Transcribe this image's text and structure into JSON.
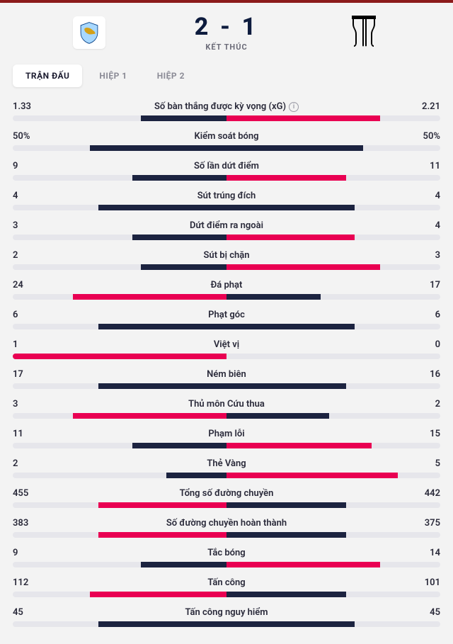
{
  "colors": {
    "home_bar": "#e90052",
    "away_bar": "#1c2340",
    "track": "#e6e6eb",
    "bg": "#f3f3f3",
    "top_border": "#8b1a1a"
  },
  "header": {
    "score": "2 - 1",
    "status": "KẾT THÚC",
    "home_team": "Lazio",
    "away_team": "Juventus"
  },
  "tabs": [
    {
      "label": "TRẬN ĐẤU",
      "active": true
    },
    {
      "label": "HIỆP 1",
      "active": false
    },
    {
      "label": "HIỆP 2",
      "active": false
    }
  ],
  "stats": [
    {
      "label": "Số bàn thắng được kỳ vọng (xG)",
      "home": "1.33",
      "away": "2.21",
      "home_pct": 20,
      "away_pct": 36,
      "info": true,
      "home_dark": true,
      "away_pink": true
    },
    {
      "label": "Kiểm soát bóng",
      "home": "50%",
      "away": "50%",
      "home_pct": 32,
      "away_pct": 32,
      "home_dark": true,
      "away_pink": false
    },
    {
      "label": "Số lần dứt điểm",
      "home": "9",
      "away": "11",
      "home_pct": 22,
      "away_pct": 28,
      "home_dark": true,
      "away_pink": true
    },
    {
      "label": "Sút trúng đích",
      "home": "4",
      "away": "4",
      "home_pct": 30,
      "away_pct": 30,
      "home_dark": true,
      "away_pink": false
    },
    {
      "label": "Dứt điểm ra ngoài",
      "home": "3",
      "away": "4",
      "home_pct": 22,
      "away_pct": 30,
      "home_dark": true,
      "away_pink": true
    },
    {
      "label": "Sút bị chặn",
      "home": "2",
      "away": "3",
      "home_pct": 20,
      "away_pct": 36,
      "home_dark": true,
      "away_pink": true
    },
    {
      "label": "Đá phạt",
      "home": "24",
      "away": "17",
      "home_pct": 36,
      "away_pct": 22,
      "home_dark": false,
      "away_pink": false
    },
    {
      "label": "Phạt góc",
      "home": "6",
      "away": "6",
      "home_pct": 30,
      "away_pct": 30,
      "home_dark": true,
      "away_pink": false
    },
    {
      "label": "Việt vị",
      "home": "1",
      "away": "0",
      "home_pct": 50,
      "away_pct": 0,
      "home_dark": false,
      "away_pink": false
    },
    {
      "label": "Ném biên",
      "home": "17",
      "away": "16",
      "home_pct": 30,
      "away_pct": 28,
      "home_dark": true,
      "away_pink": false
    },
    {
      "label": "Thủ môn Cứu thua",
      "home": "3",
      "away": "2",
      "home_pct": 36,
      "away_pct": 24,
      "home_dark": false,
      "away_pink": false
    },
    {
      "label": "Phạm lỗi",
      "home": "11",
      "away": "15",
      "home_pct": 22,
      "away_pct": 34,
      "home_dark": true,
      "away_pink": true
    },
    {
      "label": "Thẻ Vàng",
      "home": "2",
      "away": "5",
      "home_pct": 14,
      "away_pct": 40,
      "home_dark": true,
      "away_pink": true
    },
    {
      "label": "Tổng số đường chuyền",
      "home": "455",
      "away": "442",
      "home_pct": 30,
      "away_pct": 28,
      "home_dark": false,
      "away_pink": false
    },
    {
      "label": "Số đường chuyền hoàn thành",
      "home": "383",
      "away": "375",
      "home_pct": 30,
      "away_pct": 28,
      "home_dark": false,
      "away_pink": false
    },
    {
      "label": "Tắc bóng",
      "home": "9",
      "away": "14",
      "home_pct": 20,
      "away_pct": 36,
      "home_dark": true,
      "away_pink": true
    },
    {
      "label": "Tấn công",
      "home": "112",
      "away": "101",
      "home_pct": 32,
      "away_pct": 28,
      "home_dark": false,
      "away_pink": false
    },
    {
      "label": "Tấn công nguy hiểm",
      "home": "45",
      "away": "45",
      "home_pct": 30,
      "away_pct": 30,
      "home_dark": true,
      "away_pink": false
    }
  ]
}
